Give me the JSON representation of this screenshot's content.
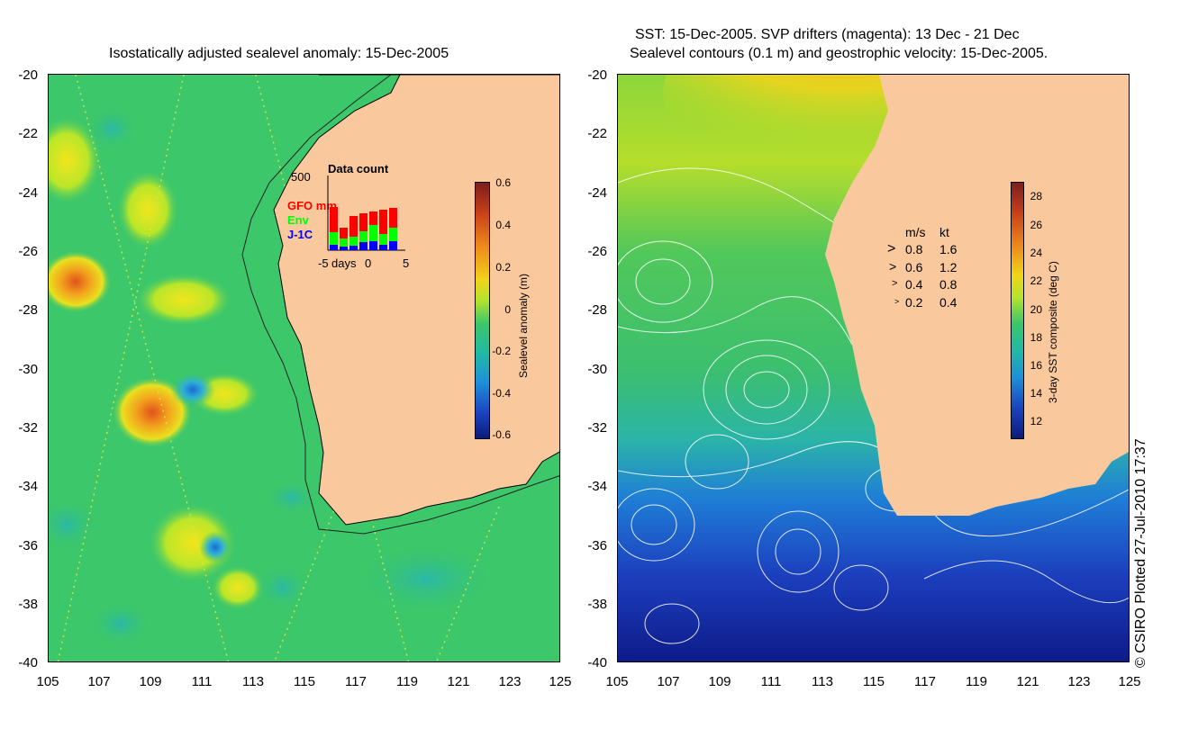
{
  "left_panel": {
    "title": "Isostatically adjusted sealevel anomaly: 15-Dec-2005",
    "colorbar_label": "Sealevel anomaly (m)",
    "colorbar_ticks": [
      "0.6",
      "0.4",
      "0.2",
      "0",
      "-0.2",
      "-0.4",
      "-0.6"
    ],
    "inset": {
      "title": "Data count",
      "ymax": "500",
      "series": [
        {
          "name": "GFO mm",
          "color": "#ff0000"
        },
        {
          "name": "Env",
          "color": "#00ff00"
        },
        {
          "name": "J-1C",
          "color": "#0000ff"
        }
      ],
      "x_ticks": [
        "-5",
        "days",
        "0",
        "5"
      ]
    }
  },
  "right_panel": {
    "title_line1": "SST: 15-Dec-2005. SVP drifters (magenta): 13 Dec - 21 Dec",
    "title_line2": "Sealevel contours (0.1 m) and geostrophic velocity: 15-Dec-2005.",
    "colorbar_label": "3-day SST composite (deg C)",
    "colorbar_ticks": [
      "28",
      "26",
      "24",
      "22",
      "20",
      "18",
      "16",
      "14",
      "12"
    ],
    "velocity_legend": {
      "header_ms": "m/s",
      "header_kt": "kt",
      "rows": [
        {
          "ms": "0.8",
          "kt": "1.6"
        },
        {
          "ms": "0.6",
          "kt": "1.2"
        },
        {
          "ms": "0.4",
          "kt": "0.8"
        },
        {
          "ms": "0.2",
          "kt": "0.4"
        }
      ]
    }
  },
  "y_ticks": [
    "-20",
    "-22",
    "-24",
    "-26",
    "-28",
    "-30",
    "-32",
    "-34",
    "-36",
    "-38",
    "-40"
  ],
  "x_ticks": [
    "105",
    "107",
    "109",
    "111",
    "113",
    "115",
    "117",
    "119",
    "121",
    "123",
    "125"
  ],
  "credit": "© CSIRO Plotted 27-Jul-2010 17:37",
  "colors": {
    "land": "#f9c89c",
    "ocean_green": "#3cc76a"
  }
}
